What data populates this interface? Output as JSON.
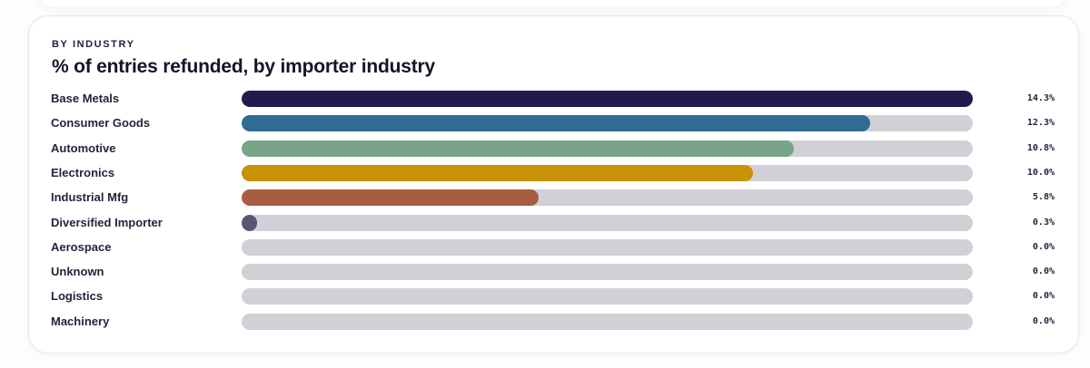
{
  "header": {
    "eyebrow": "BY INDUSTRY",
    "title": "% of entries refunded, by importer industry"
  },
  "chart_data": {
    "type": "bar",
    "orientation": "horizontal",
    "title": "% of entries refunded, by importer industry",
    "xlim": [
      0,
      14.3
    ],
    "categories": [
      "Base Metals",
      "Consumer Goods",
      "Automotive",
      "Electronics",
      "Industrial Mfg",
      "Diversified Importer",
      "Aerospace",
      "Unknown",
      "Logistics",
      "Machinery"
    ],
    "values": [
      14.3,
      12.3,
      10.8,
      10.0,
      5.8,
      0.3,
      0.0,
      0.0,
      0.0,
      0.0
    ],
    "value_labels": [
      "14.3%",
      "12.3%",
      "10.8%",
      "10.0%",
      "5.8%",
      "0.3%",
      "0.0%",
      "0.0%",
      "0.0%",
      "0.0%"
    ],
    "colors": [
      "#221a4c",
      "#2f6b92",
      "#78a487",
      "#c89205",
      "#a85d42",
      "#5d5470",
      "#d1d0d6",
      "#d1d0d6",
      "#d1d0d6",
      "#d1d0d6"
    ],
    "track_color": "#d1d0d6",
    "grid": false,
    "legend": "none"
  }
}
